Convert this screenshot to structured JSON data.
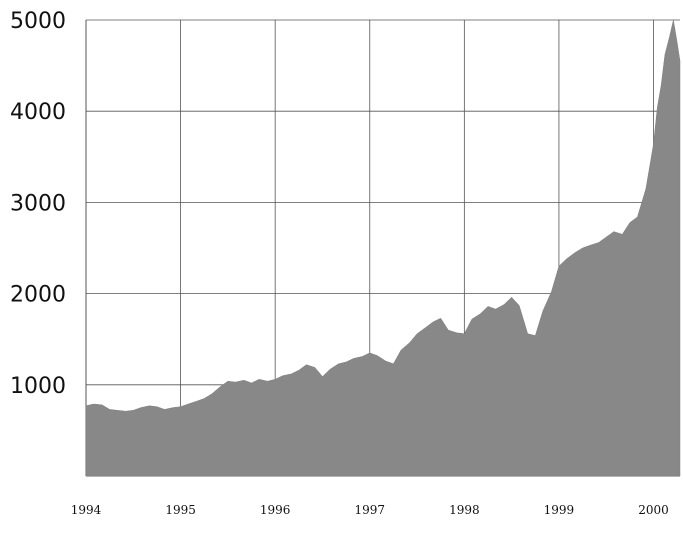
{
  "chart_data": {
    "type": "area",
    "title": "",
    "xlabel": "",
    "ylabel": "",
    "x_unit": "year",
    "xlim": [
      1994.0,
      2000.28
    ],
    "ylim": [
      0,
      5000
    ],
    "x_ticks": [
      1994,
      1995,
      1996,
      1997,
      1998,
      1999,
      2000
    ],
    "x_tick_labels": [
      "1994",
      "1995",
      "1996",
      "1997",
      "1998",
      "1999",
      "2000"
    ],
    "y_ticks": [
      1000,
      2000,
      3000,
      4000,
      5000
    ],
    "y_tick_labels": [
      "1000",
      "2000",
      "3000",
      "4000",
      "5000"
    ],
    "grid": true,
    "legend": "none",
    "color": "#888888",
    "series": [
      {
        "x": [
          1994.0,
          1994.08,
          1994.17,
          1994.25,
          1994.33,
          1994.42,
          1994.5,
          1994.58,
          1994.67,
          1994.75,
          1994.83,
          1994.92,
          1995.0,
          1995.08,
          1995.17,
          1995.25,
          1995.33,
          1995.42,
          1995.5,
          1995.58,
          1995.67,
          1995.75,
          1995.83,
          1995.92,
          1996.0,
          1996.08,
          1996.17,
          1996.25,
          1996.33,
          1996.42,
          1996.5,
          1996.58,
          1996.67,
          1996.75,
          1996.83,
          1996.92,
          1997.0,
          1997.08,
          1997.17,
          1997.25,
          1997.33,
          1997.42,
          1997.5,
          1997.58,
          1997.67,
          1997.75,
          1997.83,
          1997.92,
          1998.0,
          1998.08,
          1998.17,
          1998.25,
          1998.33,
          1998.42,
          1998.5,
          1998.58,
          1998.67,
          1998.75,
          1998.83,
          1998.92,
          1999.0,
          1999.08,
          1999.17,
          1999.25,
          1999.33,
          1999.42,
          1999.5,
          1999.58,
          1999.67,
          1999.75,
          1999.83,
          1999.92,
          2000.0,
          2000.04,
          2000.08,
          2000.12,
          2000.17,
          2000.21,
          2000.25,
          2000.28
        ],
        "y": [
          770,
          790,
          780,
          730,
          720,
          710,
          720,
          750,
          770,
          760,
          730,
          750,
          760,
          790,
          820,
          850,
          900,
          980,
          1040,
          1030,
          1050,
          1020,
          1060,
          1040,
          1060,
          1100,
          1120,
          1160,
          1220,
          1190,
          1090,
          1170,
          1230,
          1250,
          1290,
          1310,
          1350,
          1320,
          1260,
          1230,
          1380,
          1460,
          1560,
          1620,
          1690,
          1730,
          1600,
          1570,
          1560,
          1720,
          1780,
          1860,
          1830,
          1880,
          1960,
          1870,
          1560,
          1540,
          1810,
          2020,
          2300,
          2380,
          2450,
          2500,
          2530,
          2560,
          2620,
          2680,
          2650,
          2780,
          2840,
          3150,
          3640,
          4040,
          4280,
          4620,
          4820,
          5000,
          4750,
          4550
        ]
      }
    ]
  }
}
